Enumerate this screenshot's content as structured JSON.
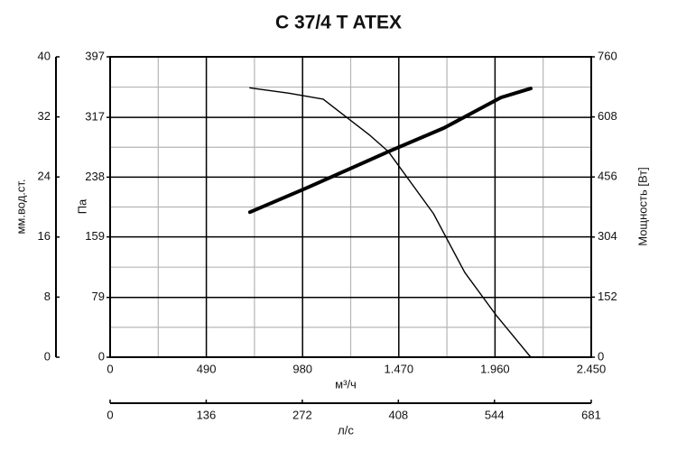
{
  "chart_data": {
    "type": "line",
    "title": "C 37/4 T ATEX",
    "xlabel": "м³/ч",
    "xlim": [
      0,
      2450
    ],
    "xticks": [
      0,
      490,
      980,
      {
        "value": 1470,
        "label": "1.470"
      },
      {
        "value": 1960,
        "label": "1.960"
      },
      {
        "value": 2450,
        "label": "2.450"
      }
    ],
    "x2label": "л/с",
    "x2lim": [
      0,
      681
    ],
    "x2ticks": [
      0,
      136,
      272,
      408,
      544,
      681
    ],
    "ylabel": "Па",
    "ylim": [
      0,
      397
    ],
    "yticks": [
      0,
      79,
      159,
      238,
      317,
      397
    ],
    "y3label": "мм.вод.ст.",
    "y3lim": [
      0,
      40
    ],
    "y3ticks": [
      0,
      8,
      16,
      24,
      32,
      40
    ],
    "y2label": "Мощность [Вт]",
    "y2lim": [
      0,
      760
    ],
    "y2ticks": [
      0,
      152,
      304,
      456,
      608,
      760
    ],
    "grid": true,
    "series": [
      {
        "color": "#000000",
        "x": [
          712,
          910,
          1085,
          1324,
          1416,
          1646,
          1806,
          1967,
          2142
        ],
        "values": [
          356,
          349,
          341,
          293,
          272,
          190,
          112,
          55,
          0
        ]
      },
      {
        "color": "#000000",
        "axis": "y2",
        "x": [
          712,
          1000,
          1416,
          1700,
          1990,
          2142
        ],
        "values": [
          367,
          428,
          520,
          580,
          657,
          680
        ]
      }
    ]
  }
}
